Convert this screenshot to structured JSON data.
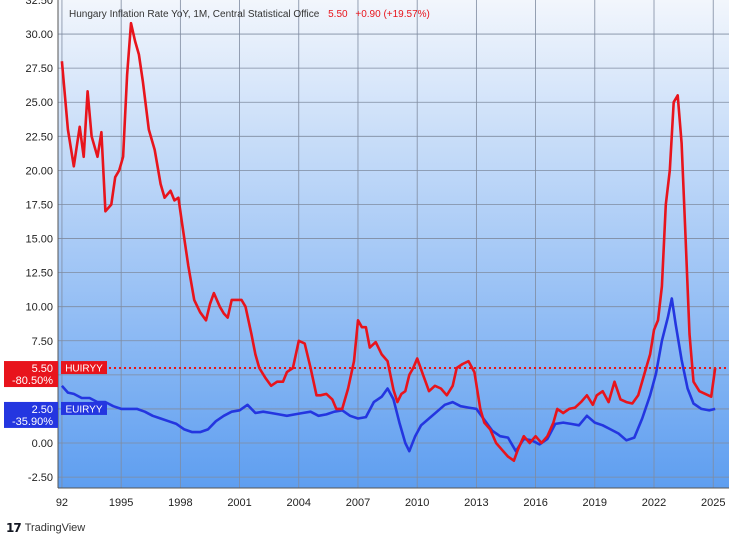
{
  "legend": {
    "title": "Hungary Inflation Rate YoY, 1M, Central Statistical Office",
    "last_value": "5.50",
    "change": "+0.90 (+19.57%)"
  },
  "branding": {
    "text": "TradingView",
    "icon": "tradingview-logo-icon"
  },
  "colors": {
    "red": "#e8141c",
    "blue": "#2436e0",
    "bg_top": "#f2f6fc",
    "bg_bottom": "#5e9ef0",
    "grid": "#7f8ba0"
  },
  "chart_data": {
    "type": "line",
    "title": "Hungary Inflation Rate YoY, 1M, Central Statistical Office",
    "y_ticks": [
      "32.50",
      "30.00",
      "27.50",
      "25.00",
      "22.50",
      "20.00",
      "17.50",
      "15.00",
      "12.50",
      "10.00",
      "7.50",
      "5.00",
      "2.50",
      "0.00",
      "-2.50"
    ],
    "x_ticks": [
      "92",
      "1995",
      "1998",
      "2001",
      "2004",
      "2007",
      "2010",
      "2013",
      "2016",
      "2019",
      "2022",
      "2025"
    ],
    "ylim": [
      -3.3,
      32.5
    ],
    "xlim": [
      1991.8,
      2025.8
    ],
    "grid": true,
    "y_scale_side": "left",
    "reference_line": {
      "value": 5.5,
      "style": "dotted",
      "color": "#e8141c"
    },
    "series": [
      {
        "name": "HUIRYY",
        "color": "#e8141c",
        "label_value": "5.50",
        "label_change": "-80.50%",
        "x": [
          1992.0,
          1992.3,
          1992.6,
          1992.9,
          1993.1,
          1993.3,
          1993.5,
          1993.8,
          1994.0,
          1994.2,
          1994.5,
          1994.7,
          1994.9,
          1995.1,
          1995.3,
          1995.5,
          1995.7,
          1995.9,
          1996.1,
          1996.4,
          1996.7,
          1997.0,
          1997.2,
          1997.5,
          1997.7,
          1997.9,
          1998.1,
          1998.4,
          1998.7,
          1999.0,
          1999.3,
          1999.5,
          1999.7,
          2000.0,
          2000.2,
          2000.4,
          2000.6,
          2000.9,
          2001.1,
          2001.3,
          2001.6,
          2001.8,
          2002.0,
          2002.3,
          2002.6,
          2002.9,
          2003.2,
          2003.4,
          2003.7,
          2004.0,
          2004.3,
          2004.6,
          2004.9,
          2005.1,
          2005.4,
          2005.7,
          2005.9,
          2006.2,
          2006.5,
          2006.8,
          2007.0,
          2007.2,
          2007.4,
          2007.6,
          2007.9,
          2008.2,
          2008.5,
          2008.8,
          2009.0,
          2009.2,
          2009.4,
          2009.6,
          2009.8,
          2010.0,
          2010.3,
          2010.6,
          2010.9,
          2011.2,
          2011.5,
          2011.8,
          2012.0,
          2012.3,
          2012.6,
          2012.9,
          2013.2,
          2013.4,
          2013.7,
          2014.0,
          2014.3,
          2014.6,
          2014.9,
          2015.1,
          2015.4,
          2015.7,
          2016.0,
          2016.3,
          2016.6,
          2016.9,
          2017.1,
          2017.4,
          2017.7,
          2018.0,
          2018.3,
          2018.6,
          2018.9,
          2019.1,
          2019.4,
          2019.7,
          2020.0,
          2020.3,
          2020.6,
          2020.9,
          2021.2,
          2021.5,
          2021.8,
          2022.0,
          2022.2,
          2022.4,
          2022.6,
          2022.8,
          2023.0,
          2023.2,
          2023.4,
          2023.6,
          2023.8,
          2024.0,
          2024.3,
          2024.6,
          2024.9,
          2025.1
        ],
        "y": [
          28.0,
          23.0,
          20.3,
          23.2,
          21.0,
          25.8,
          22.5,
          21.0,
          22.8,
          17.0,
          17.5,
          19.5,
          20.0,
          21.0,
          27.0,
          30.8,
          29.5,
          28.5,
          26.5,
          23.0,
          21.5,
          19.0,
          18.0,
          18.5,
          17.8,
          18.0,
          16.0,
          13.0,
          10.5,
          9.6,
          9.0,
          10.2,
          11.0,
          10.0,
          9.5,
          9.2,
          10.5,
          10.5,
          10.5,
          10.0,
          8.0,
          6.5,
          5.5,
          4.8,
          4.2,
          4.5,
          4.5,
          5.2,
          5.5,
          7.5,
          7.3,
          5.5,
          3.5,
          3.5,
          3.6,
          3.2,
          2.5,
          2.5,
          4.0,
          6.0,
          9.0,
          8.5,
          8.5,
          7.0,
          7.4,
          6.5,
          6.0,
          3.9,
          3.0,
          3.6,
          3.8,
          5.0,
          5.5,
          6.2,
          5.0,
          3.8,
          4.2,
          4.0,
          3.5,
          4.2,
          5.5,
          5.8,
          6.0,
          5.2,
          2.5,
          1.5,
          1.0,
          0.0,
          -0.5,
          -1.0,
          -1.3,
          -0.5,
          0.5,
          0.0,
          0.5,
          0.0,
          0.5,
          1.5,
          2.5,
          2.2,
          2.5,
          2.6,
          3.0,
          3.5,
          2.8,
          3.5,
          3.8,
          3.0,
          4.5,
          3.2,
          3.0,
          2.9,
          3.5,
          5.0,
          6.5,
          8.3,
          9.0,
          11.5,
          17.5,
          20.0,
          25.0,
          25.5,
          22.0,
          15.0,
          8.0,
          4.5,
          3.8,
          3.6,
          3.4,
          5.5
        ]
      },
      {
        "name": "EUIRYY",
        "color": "#2436e0",
        "label_value": "2.50",
        "label_change": "-35.90%",
        "x": [
          1992.0,
          1992.3,
          1992.6,
          1993.0,
          1993.4,
          1993.8,
          1994.2,
          1994.6,
          1995.0,
          1995.4,
          1995.8,
          1996.2,
          1996.6,
          1997.0,
          1997.4,
          1997.8,
          1998.2,
          1998.6,
          1999.0,
          1999.4,
          1999.8,
          2000.2,
          2000.6,
          2001.0,
          2001.4,
          2001.8,
          2002.2,
          2002.6,
          2003.0,
          2003.4,
          2003.8,
          2004.2,
          2004.6,
          2005.0,
          2005.4,
          2005.8,
          2006.2,
          2006.6,
          2007.0,
          2007.4,
          2007.8,
          2008.2,
          2008.5,
          2008.8,
          2009.1,
          2009.4,
          2009.6,
          2009.9,
          2010.2,
          2010.6,
          2011.0,
          2011.4,
          2011.8,
          2012.2,
          2012.6,
          2013.0,
          2013.4,
          2013.8,
          2014.2,
          2014.6,
          2015.0,
          2015.4,
          2015.8,
          2016.2,
          2016.6,
          2017.0,
          2017.4,
          2017.8,
          2018.2,
          2018.6,
          2019.0,
          2019.4,
          2019.8,
          2020.2,
          2020.6,
          2021.0,
          2021.4,
          2021.8,
          2022.1,
          2022.4,
          2022.7,
          2022.9,
          2023.1,
          2023.4,
          2023.7,
          2024.0,
          2024.4,
          2024.8,
          2025.1
        ],
        "y": [
          4.2,
          3.7,
          3.6,
          3.3,
          3.3,
          3.0,
          3.0,
          2.7,
          2.5,
          2.5,
          2.5,
          2.3,
          2.0,
          1.8,
          1.6,
          1.4,
          1.0,
          0.8,
          0.8,
          1.0,
          1.6,
          2.0,
          2.3,
          2.4,
          2.8,
          2.2,
          2.3,
          2.2,
          2.1,
          2.0,
          2.1,
          2.2,
          2.3,
          2.0,
          2.1,
          2.3,
          2.4,
          2.0,
          1.8,
          1.9,
          3.0,
          3.4,
          4.0,
          3.2,
          1.5,
          0.0,
          -0.6,
          0.5,
          1.3,
          1.8,
          2.3,
          2.8,
          3.0,
          2.7,
          2.6,
          2.5,
          1.7,
          0.9,
          0.5,
          0.4,
          -0.6,
          0.3,
          0.2,
          -0.1,
          0.3,
          1.4,
          1.5,
          1.4,
          1.3,
          2.0,
          1.5,
          1.3,
          1.0,
          0.7,
          0.2,
          0.4,
          1.8,
          3.5,
          5.1,
          7.5,
          9.2,
          10.6,
          8.7,
          6.1,
          4.0,
          2.9,
          2.5,
          2.4,
          2.5
        ]
      }
    ]
  }
}
